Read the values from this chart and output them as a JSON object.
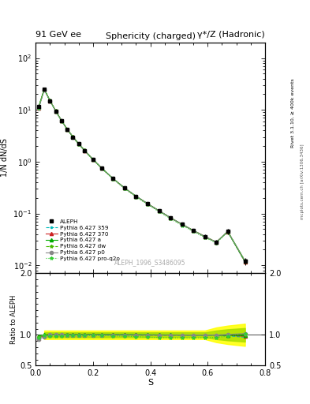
{
  "title_top_left": "91 GeV ee",
  "title_top_right": "γ*/Z (Hadronic)",
  "title_main": "Sphericity (charged)",
  "ylabel_main": "1/N dN/dS",
  "ylabel_ratio": "Ratio to ALEPH",
  "xlabel": "S",
  "right_label_top": "Rivet 3.1.10, ≥ 400k events",
  "right_label_bot": "mcplots.cern.ch [arXiv:1306.3436]",
  "ref_label": "ALEPH_1996_S3486095",
  "S_values": [
    0.01,
    0.03,
    0.05,
    0.07,
    0.09,
    0.11,
    0.13,
    0.15,
    0.17,
    0.2,
    0.23,
    0.27,
    0.31,
    0.35,
    0.39,
    0.43,
    0.47,
    0.51,
    0.55,
    0.59,
    0.63,
    0.67,
    0.73
  ],
  "ALEPH_y": [
    11.5,
    25.0,
    15.0,
    9.5,
    6.2,
    4.2,
    3.0,
    2.2,
    1.65,
    1.1,
    0.75,
    0.47,
    0.31,
    0.215,
    0.155,
    0.113,
    0.083,
    0.062,
    0.047,
    0.036,
    0.028,
    0.045,
    0.012
  ],
  "ALEPH_yerr": [
    0.5,
    1.0,
    0.6,
    0.4,
    0.25,
    0.18,
    0.13,
    0.1,
    0.08,
    0.05,
    0.035,
    0.022,
    0.015,
    0.01,
    0.008,
    0.006,
    0.005,
    0.004,
    0.003,
    0.003,
    0.003,
    0.005,
    0.002
  ],
  "series": [
    {
      "label": "Pythia 6.427 359",
      "color": "#00bbbb",
      "linestyle": "--",
      "marker": ".",
      "markersize": 3
    },
    {
      "label": "Pythia 6.427 370",
      "color": "#cc2222",
      "linestyle": "-",
      "marker": "^",
      "markersize": 3
    },
    {
      "label": "Pythia 6.427 a",
      "color": "#00aa00",
      "linestyle": "-",
      "marker": "^",
      "markersize": 3
    },
    {
      "label": "Pythia 6.427 dw",
      "color": "#44bb00",
      "linestyle": "--",
      "marker": "*",
      "markersize": 3
    },
    {
      "label": "Pythia 6.427 p0",
      "color": "#888888",
      "linestyle": "-",
      "marker": "o",
      "markersize": 3
    },
    {
      "label": "Pythia 6.427 pro-q2o",
      "color": "#33cc33",
      "linestyle": ":",
      "marker": "*",
      "markersize": 3
    }
  ],
  "ylim_main": [
    0.007,
    200
  ],
  "ylim_ratio": [
    0.5,
    2.0
  ],
  "xlim": [
    0.0,
    0.8
  ],
  "background_color": "#ffffff",
  "band_color_yellow": "#ffff00",
  "band_color_green": "#aadd00"
}
